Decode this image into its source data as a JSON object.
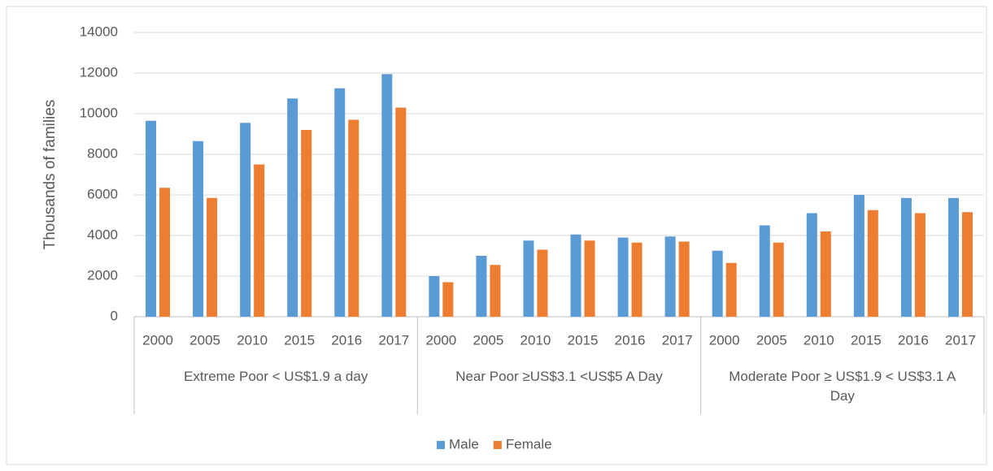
{
  "chart_data": {
    "type": "bar",
    "y_label": "Thousands of families",
    "categories": [
      "2000",
      "2005",
      "2010",
      "2015",
      "2016",
      "2017",
      "2000",
      "2005",
      "2010",
      "2015",
      "2016",
      "2017",
      "2000",
      "2005",
      "2010",
      "2015",
      "2016",
      "2017"
    ],
    "groups": [
      "Extreme Poor < US$1.9 a day",
      "Near Poor ≥US$3.1 <US$5 A Day",
      "Moderate Poor ≥ US$1.9 < US$3.1 A Day"
    ],
    "series": [
      {
        "name": "Male",
        "color": "#5b9bd5",
        "values": [
          9650,
          8650,
          9550,
          10750,
          11250,
          11950,
          2000,
          3000,
          3750,
          4050,
          3900,
          3950,
          3250,
          4500,
          5100,
          6000,
          5850,
          5850
        ]
      },
      {
        "name": "Female",
        "color": "#ed7d31",
        "values": [
          6350,
          5850,
          7500,
          9200,
          9700,
          10300,
          1700,
          2550,
          3300,
          3750,
          3650,
          3700,
          2650,
          3650,
          4200,
          5250,
          5100,
          5150
        ]
      }
    ],
    "ylim": [
      0,
      14000
    ],
    "yticks": [
      0,
      2000,
      4000,
      6000,
      8000,
      10000,
      12000,
      14000
    ],
    "grid": true,
    "legend": "bottom"
  }
}
